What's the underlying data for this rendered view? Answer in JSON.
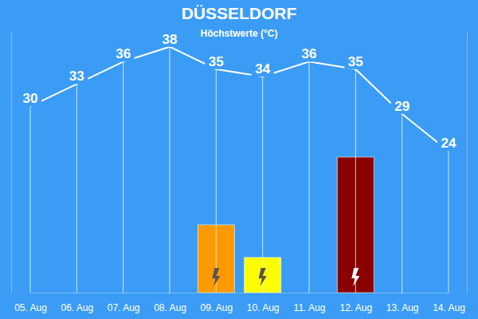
{
  "chart_data": {
    "type": "line",
    "title": "DÜSSELDORF",
    "subtitle": "Höchstwerte (°C)",
    "categories": [
      "05. Aug",
      "06. Aug",
      "07. Aug",
      "08. Aug",
      "09. Aug",
      "10. Aug",
      "11. Aug",
      "12. Aug",
      "13. Aug",
      "14. Aug"
    ],
    "series": [
      {
        "type": "line",
        "color": "#ffffff",
        "values": [
          30,
          33,
          36,
          38,
          35,
          34,
          36,
          35,
          29,
          24
        ],
        "data_labels": true
      },
      {
        "type": "bar",
        "axis": "y2",
        "values": [
          null,
          null,
          null,
          null,
          26,
          13.5,
          null,
          52,
          null,
          null
        ],
        "colors": [
          null,
          null,
          null,
          null,
          "#ff9900",
          "#ffff00",
          null,
          "#8b0000",
          null,
          null
        ]
      }
    ],
    "ylim": [
      5,
      40
    ],
    "yticks": [],
    "y2lim": [
      0,
      100
    ],
    "y2ticks": [],
    "tick_labels": "x"
  }
}
